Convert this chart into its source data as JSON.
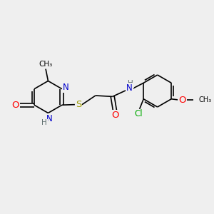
{
  "bg_color": "#efefef",
  "bond_color": "#000000",
  "atom_colors": {
    "N": "#0000cc",
    "O": "#ff0000",
    "S": "#999900",
    "Cl": "#00aa00",
    "C": "#000000",
    "H": "#607070"
  },
  "font_size": 8.5,
  "fig_size": [
    3.0,
    3.0
  ],
  "dpi": 100
}
